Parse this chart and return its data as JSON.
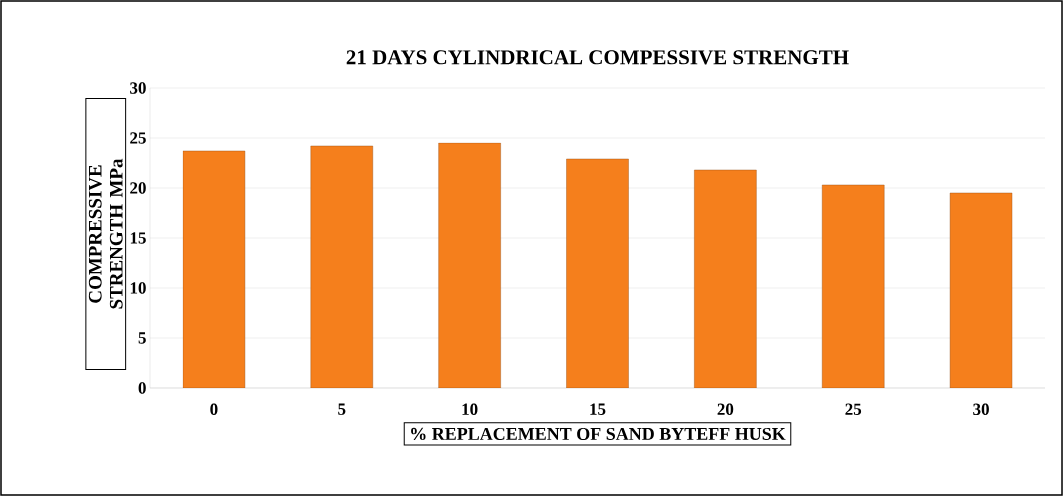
{
  "chart_data": {
    "type": "bar",
    "title": "21 DAYS CYLINDRICAL COMPESSIVE STRENGTH",
    "xlabel": "% REPLACEMENT OF SAND BYTEFF HUSK",
    "ylabel": "COMPRESSIVE STRENGTH MPa",
    "categories": [
      "0",
      "5",
      "10",
      "15",
      "20",
      "25",
      "30"
    ],
    "values": [
      23.7,
      24.2,
      24.5,
      22.9,
      21.8,
      20.3,
      19.5
    ],
    "color": "#f57f1c",
    "ylim": [
      0,
      30
    ],
    "yticks": [
      0,
      5,
      10,
      15,
      20,
      25,
      30
    ],
    "grid": "y"
  }
}
